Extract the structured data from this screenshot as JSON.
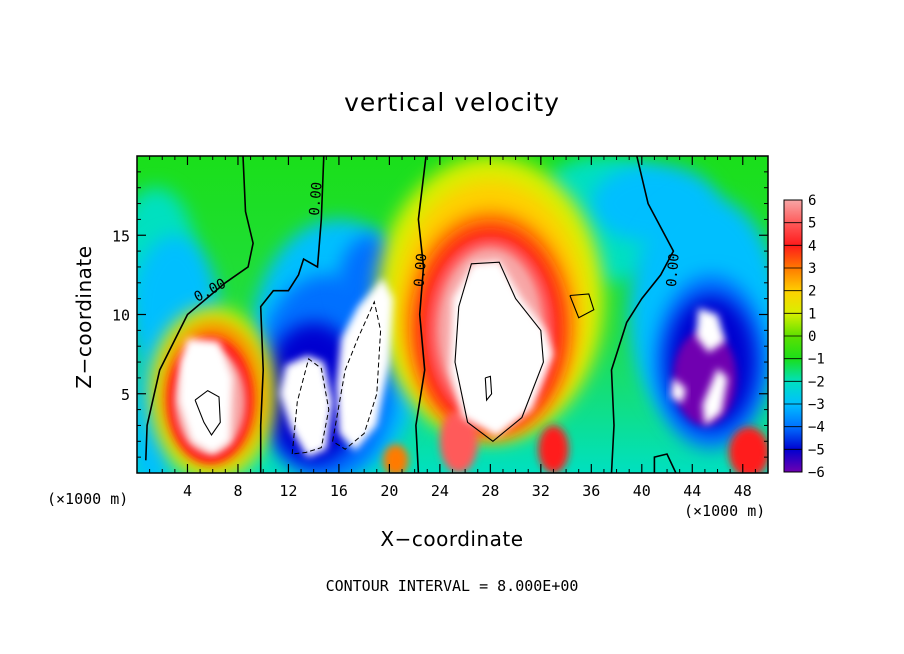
{
  "chart_data": {
    "type": "heatmap",
    "title": "vertical velocity",
    "xlabel": "X−coordinate",
    "ylabel": "Z−coordinate",
    "x_unit": "(×1000 m)",
    "y_unit": "(×1000 m)",
    "xlim": [
      0,
      50
    ],
    "ylim": [
      0,
      20
    ],
    "x_ticks": [
      4,
      8,
      12,
      16,
      20,
      24,
      28,
      32,
      36,
      40,
      44,
      48
    ],
    "y_ticks": [
      5,
      10,
      15
    ],
    "colorbar": {
      "min": -6,
      "max": 6,
      "labels": [
        "6",
        "5",
        "4",
        "3",
        "2",
        "1",
        "0",
        "−1",
        "−2",
        "−3",
        "−4",
        "−5",
        "−6"
      ],
      "colors": [
        "#f7a6a6",
        "#ff5a5a",
        "#ff1a1a",
        "#ff7a00",
        "#ffd000",
        "#d8f000",
        "#5ce000",
        "#1adf1a",
        "#00e0c0",
        "#00bfff",
        "#0070ff",
        "#0000d0",
        "#7000b0"
      ]
    },
    "contour_labels": [
      {
        "text": "0.00",
        "x": 5.8,
        "z": 11.5
      },
      {
        "text": "0.00",
        "x": 14.2,
        "z": 17.3
      },
      {
        "text": "0.00",
        "x": 22.5,
        "z": 12.8
      },
      {
        "text": "0.00",
        "x": 42.5,
        "z": 12.8
      }
    ],
    "features": [
      {
        "sign": "positive",
        "x": 5.5,
        "z": 4.5,
        "peak": "above 6"
      },
      {
        "sign": "negative",
        "x": 13,
        "z": 5,
        "peak": "below -6"
      },
      {
        "sign": "positive",
        "x": 17.5,
        "z": 7.5,
        "peak": "above 6"
      },
      {
        "sign": "positive",
        "x": 28,
        "z": 8.5,
        "peak": "above 6"
      },
      {
        "sign": "negative",
        "x": 45,
        "z": 6,
        "peak": "below -6"
      },
      {
        "sign": "positive",
        "x": 48.5,
        "z": 1.3,
        "peak": "about 6"
      }
    ],
    "contour_interval_label": "CONTOUR INTERVAL =  8.000E+00"
  }
}
